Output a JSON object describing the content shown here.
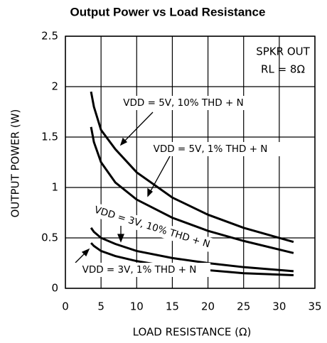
{
  "chart_data": {
    "type": "line",
    "title": "Output Power vs Load Resistance",
    "xlabel": "LOAD RESISTANCE (Ω)",
    "ylabel": "OUTPUT POWER (W)",
    "annotations": [
      "SPKR OUT",
      "RL = 8Ω"
    ],
    "x": [
      3.6,
      4,
      5,
      7,
      10,
      15,
      20,
      25,
      32
    ],
    "series": [
      {
        "name": "VDD = 5V, 10% THD + N",
        "color": "#000000",
        "values": [
          1.95,
          1.8,
          1.57,
          1.38,
          1.15,
          0.9,
          0.73,
          0.6,
          0.46
        ]
      },
      {
        "name": "VDD = 5V, 1% THD + N",
        "color": "#000000",
        "values": [
          1.6,
          1.45,
          1.25,
          1.05,
          0.88,
          0.7,
          0.57,
          0.47,
          0.35
        ]
      },
      {
        "name": "VDD = 3V, 10% THD + N",
        "color": "#000000",
        "values": [
          0.6,
          0.56,
          0.5,
          0.44,
          0.37,
          0.3,
          0.25,
          0.21,
          0.17
        ]
      },
      {
        "name": "VDD = 3V, 1% THD + N",
        "color": "#000000",
        "values": [
          0.45,
          0.42,
          0.37,
          0.32,
          0.27,
          0.21,
          0.18,
          0.15,
          0.13
        ]
      }
    ],
    "xlim": [
      0,
      35
    ],
    "xticks": [
      0,
      5,
      10,
      15,
      20,
      25,
      30,
      35
    ],
    "ylim": [
      0,
      2.5
    ],
    "yticks": [
      0,
      0.5,
      1,
      1.5,
      2,
      2.5
    ],
    "grid": true
  }
}
